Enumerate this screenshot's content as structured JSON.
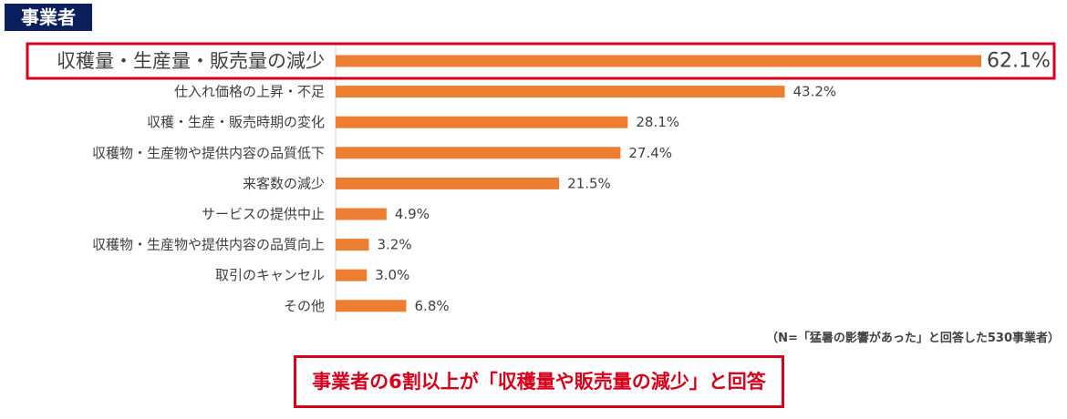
{
  "tag": "事業者",
  "chart_data": {
    "type": "bar",
    "orientation": "horizontal",
    "categories": [
      "収穫量・生産量・販売量の減少",
      "仕入れ価格の上昇・不足",
      "収穫・生産・販売時期の変化",
      "収穫物・生産物や提供内容の品質低下",
      "来客数の減少",
      "サービスの提供中止",
      "収穫物・生産物や提供内容の品質向上",
      "取引のキャンセル",
      "その他"
    ],
    "values": [
      62.1,
      43.2,
      28.1,
      27.4,
      21.5,
      4.9,
      3.2,
      3.0,
      6.8
    ],
    "value_labels": [
      "62.1%",
      "43.2%",
      "28.1%",
      "27.4%",
      "21.5%",
      "4.9%",
      "3.2%",
      "3.0%",
      "6.8%"
    ],
    "xlim": [
      0,
      62.1
    ],
    "grid": false,
    "bar_color": "#ed7d31",
    "highlight_color": "#d6001c",
    "highlighted_index": 0
  },
  "note": "（N=「猛暑の影響があった」と回答した530事業者）",
  "conclusion": "事業者の6割以上が「収穫量や販売量の減少」と回答"
}
